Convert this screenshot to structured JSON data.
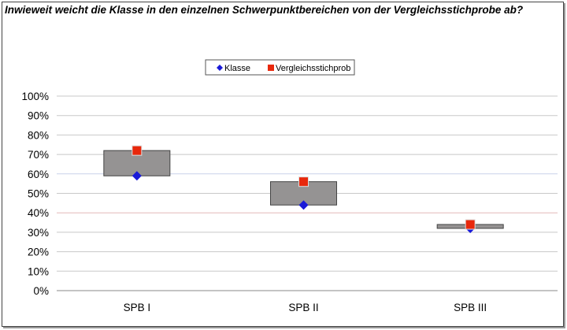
{
  "chart_data": {
    "type": "floating-bar-with-markers",
    "title": "Inwieweit weicht die Klasse in den einzelnen Schwerpunktbereichen von der Vergleichsstichprobe ab?",
    "categories": [
      "SPB I",
      "SPB II",
      "SPB III"
    ],
    "series": [
      {
        "name": "Klasse",
        "marker": "diamond",
        "color": "#1a1ad8",
        "values": [
          59,
          44,
          32
        ]
      },
      {
        "name": "Vergleichsstichprob",
        "marker": "square",
        "color": "#e8280c",
        "values": [
          72,
          56,
          34
        ]
      }
    ],
    "bar_color": "#959393",
    "ylim": [
      0,
      100
    ],
    "yticks": [
      "0%",
      "10%",
      "20%",
      "30%",
      "40%",
      "50%",
      "60%",
      "70%",
      "80%",
      "90%",
      "100%"
    ],
    "grid": true,
    "legend_position": "top-center",
    "xlabel": "",
    "ylabel": ""
  }
}
